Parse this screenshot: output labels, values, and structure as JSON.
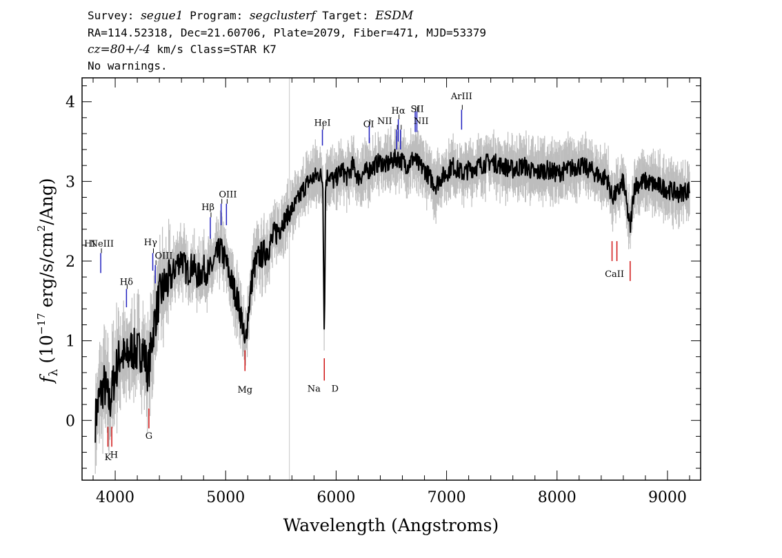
{
  "header": {
    "line1": {
      "survey_label": "Survey: ",
      "survey": "segue1",
      "program_label": " Program: ",
      "program": "segclusterf",
      "target_label": " Target: ",
      "target": "ESDM"
    },
    "line2": "RA=114.52318, Dec=21.60706, Plate=2079, Fiber=471, MJD=53379",
    "line3": {
      "cz": "cz=80+/-4",
      "rest": " km/s Class=STAR K7"
    },
    "line4": "No warnings."
  },
  "chart_data": {
    "type": "line",
    "xlabel": "Wavelength (Angstroms)",
    "ylabel": "f_λ (10^-17 erg/s/cm^2/Ang)",
    "ylabel_parts": {
      "f": "f",
      "sub": "λ",
      "pre": " (10",
      "exp1": "−17",
      "mid": " erg/s/cm",
      "exp2": "2",
      "post": "/Ang)"
    },
    "xlim": [
      3700,
      9300
    ],
    "ylim": [
      -0.75,
      4.3
    ],
    "xticks": [
      4000,
      5000,
      6000,
      7000,
      8000,
      9000
    ],
    "yticks": [
      0,
      1,
      2,
      3,
      4
    ],
    "xtick_labels": [
      "4000",
      "5000",
      "6000",
      "7000",
      "8000",
      "9000"
    ],
    "ytick_labels": [
      "0",
      "1",
      "2",
      "3",
      "4"
    ],
    "vertical_marker_x": 5577,
    "colors": {
      "flux": "#000000",
      "error": "#bdbdbd",
      "emission": "#1f1fbf",
      "absorption": "#d01010",
      "label_tick": "#000000",
      "marker": "#c8c8c8"
    },
    "series": [
      {
        "x": [
          3820,
          3850,
          3900,
          3950,
          4000,
          4050,
          4100,
          4150,
          4200,
          4250,
          4300,
          4350,
          4400,
          4450,
          4500,
          4550,
          4600,
          4650,
          4700,
          4750,
          4800,
          4850,
          4900,
          4950,
          5000,
          5050,
          5100,
          5150,
          5175,
          5200,
          5250,
          5300,
          5350,
          5400,
          5450,
          5500,
          5550,
          5600,
          5650,
          5700,
          5750,
          5800,
          5850,
          5880,
          5893,
          5905,
          5930,
          5980,
          6050,
          6100,
          6150,
          6200,
          6250,
          6300,
          6350,
          6400,
          6450,
          6500,
          6550,
          6600,
          6650,
          6700,
          6750,
          6800,
          6850,
          6900,
          6950,
          7000,
          7050,
          7100,
          7150,
          7200,
          7300,
          7400,
          7500,
          7600,
          7700,
          7800,
          7900,
          8000,
          8100,
          8200,
          8300,
          8400,
          8450,
          8498,
          8542,
          8600,
          8662,
          8700,
          8800,
          8900,
          9000,
          9100,
          9200
        ],
        "values": [
          0.0,
          0.25,
          0.45,
          0.2,
          0.6,
          0.85,
          0.75,
          0.9,
          0.85,
          0.9,
          0.6,
          1.2,
          1.55,
          1.7,
          1.75,
          1.95,
          2.05,
          1.85,
          1.95,
          1.8,
          1.9,
          1.85,
          2.0,
          2.15,
          2.0,
          1.75,
          1.55,
          1.25,
          0.9,
          1.3,
          1.9,
          2.05,
          2.1,
          2.2,
          2.35,
          2.45,
          2.55,
          2.65,
          2.75,
          2.9,
          3.0,
          3.05,
          3.1,
          3.0,
          1.0,
          3.0,
          3.1,
          3.0,
          3.15,
          3.05,
          3.2,
          3.05,
          3.1,
          3.15,
          3.2,
          3.25,
          3.2,
          3.25,
          3.3,
          3.25,
          3.2,
          3.3,
          3.2,
          3.15,
          3.05,
          2.95,
          3.05,
          3.1,
          3.2,
          3.15,
          3.1,
          3.15,
          3.2,
          3.25,
          3.2,
          3.15,
          3.2,
          3.1,
          3.15,
          3.1,
          3.15,
          3.2,
          3.15,
          3.05,
          3.05,
          2.8,
          2.85,
          3.0,
          2.4,
          2.95,
          3.0,
          2.95,
          2.9,
          2.85,
          2.9
        ]
      }
    ],
    "emission_lines": [
      {
        "name": "NeIII",
        "x": 3869,
        "y_tick": [
          1.85,
          2.1
        ],
        "label_y": 2.2
      },
      {
        "name": "Hδ",
        "x": 4102,
        "y_tick": [
          1.42,
          1.65
        ],
        "label_y": 1.75
      },
      {
        "name": "Hγ",
        "x": 4340,
        "y_tick": [
          1.88,
          2.1
        ],
        "label_y": 2.22
      },
      {
        "name": "OIII",
        "x": 4363,
        "y_tick": [
          1.72,
          1.95
        ],
        "label_y": 2.05
      },
      {
        "name": "Hβ",
        "x": 4861,
        "y_tick": [
          2.28,
          2.55
        ],
        "label_y": 2.65
      },
      {
        "name": "OIII",
        "x": 4959,
        "y_tick": [
          2.45,
          2.72
        ],
        "label_y": 2.82
      },
      {
        "name": "OIII",
        "x": 5007,
        "y_tick": [
          2.45,
          2.72
        ],
        "label_y": 2.82
      },
      {
        "name": "HeI",
        "x": 5876,
        "y_tick": [
          3.45,
          3.65
        ],
        "label_y": 3.72
      },
      {
        "name": "OI",
        "x": 6300,
        "y_tick": [
          3.48,
          3.72
        ],
        "label_y": 3.7
      },
      {
        "name": "NII",
        "x": 6548,
        "y_tick": [
          3.4,
          3.65
        ],
        "label_y": 3.73
      },
      {
        "name": "Hα",
        "x": 6563,
        "y_tick": [
          3.5,
          3.78
        ],
        "label_y": 3.88
      },
      {
        "name": "NII",
        "x": 6583,
        "y_tick": [
          3.4,
          3.65
        ],
        "label_y": 3.73
      },
      {
        "name": "SII",
        "x": 6716,
        "y_tick": [
          3.62,
          3.88
        ],
        "label_y": 3.9
      },
      {
        "name": "SII",
        "x": 6731,
        "y_tick": [
          3.62,
          3.88
        ],
        "label_y": 3.9
      },
      {
        "name": "ArIII",
        "x": 7136,
        "y_tick": [
          3.65,
          3.9
        ],
        "label_y": 4.06
      }
    ],
    "absorption_lines": [
      {
        "name": "K",
        "x": 3934,
        "y_tick": [
          -0.33,
          -0.08
        ]
      },
      {
        "name": "H",
        "x": 3969,
        "y_tick": [
          -0.33,
          -0.08
        ]
      },
      {
        "name": "G",
        "x": 4305,
        "y_tick": [
          -0.1,
          0.15
        ]
      },
      {
        "name": "Mg",
        "x": 5175,
        "y_tick": [
          0.62,
          0.88
        ]
      },
      {
        "name": "Na D",
        "x": 5893,
        "y_tick": [
          0.5,
          0.78
        ]
      },
      {
        "name": "CaII",
        "x": 8498,
        "y_tick": [
          2.0,
          2.25
        ]
      },
      {
        "name": "CaII",
        "x": 8542,
        "y_tick": [
          2.0,
          2.25
        ]
      },
      {
        "name": "CaII",
        "x": 8662,
        "y_tick": [
          1.75,
          2.0
        ]
      }
    ],
    "line_labels": [
      {
        "text": "HI",
        "x": 3770,
        "y": 2.18
      },
      {
        "text": "NeIII",
        "x": 3880,
        "y": 2.18
      },
      {
        "text": "Hδ",
        "x": 4102,
        "y": 1.7
      },
      {
        "text": "Hγ",
        "x": 4320,
        "y": 2.2
      },
      {
        "text": "OIII",
        "x": 4440,
        "y": 2.03
      },
      {
        "text": "Hβ",
        "x": 4840,
        "y": 2.64
      },
      {
        "text": "OIII",
        "x": 5020,
        "y": 2.8
      },
      {
        "text": "HeI",
        "x": 5876,
        "y": 3.7
      },
      {
        "text": "OI",
        "x": 6295,
        "y": 3.68
      },
      {
        "text": "NII",
        "x": 6440,
        "y": 3.72
      },
      {
        "text": "Hα",
        "x": 6563,
        "y": 3.85
      },
      {
        "text": "NII",
        "x": 6770,
        "y": 3.72
      },
      {
        "text": "SII",
        "x": 6735,
        "y": 3.87
      },
      {
        "text": "ArIII",
        "x": 7136,
        "y": 4.03
      },
      {
        "text": "K",
        "x": 3934,
        "y": -0.5
      },
      {
        "text": "H",
        "x": 3990,
        "y": -0.47
      },
      {
        "text": "G",
        "x": 4305,
        "y": -0.23
      },
      {
        "text": "Mg",
        "x": 5175,
        "y": 0.35
      },
      {
        "text": "Na",
        "x": 5800,
        "y": 0.36
      },
      {
        "text": "D",
        "x": 5990,
        "y": 0.36
      },
      {
        "text": "CaII",
        "x": 8520,
        "y": 1.8
      }
    ]
  }
}
